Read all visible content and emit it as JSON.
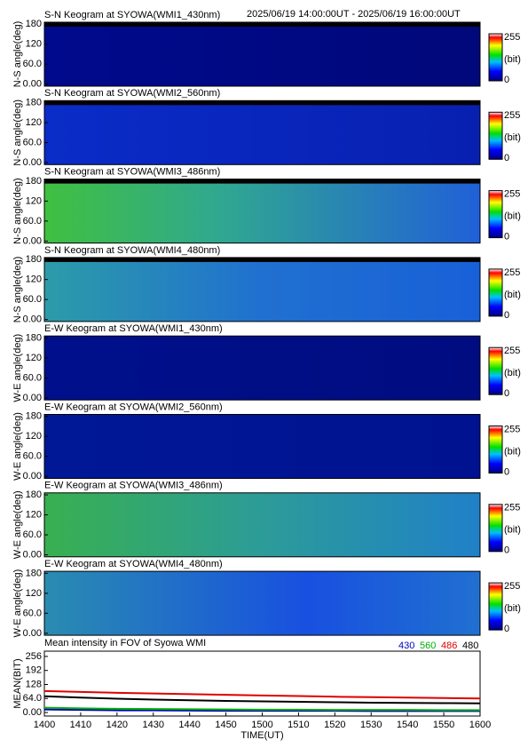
{
  "header": {
    "time_range": "2025/06/19 14:00:00UT - 2025/06/19 16:00:00UT"
  },
  "panels": [
    {
      "title": "S-N Keogram at SYOWA(WMI1_430nm)",
      "ylabel": "N-S angle(deg)",
      "ylim": [
        -6,
        186
      ],
      "yticks": [
        {
          "value": 0,
          "label": "0.00"
        },
        {
          "value": 60,
          "label": "60.0"
        },
        120,
        180
      ],
      "colorbar": {
        "max": 255,
        "unit": "(bit)",
        "min": 0
      }
    },
    {
      "title": "S-N Keogram at SYOWA(WMI2_560nm)",
      "ylabel": "N-S angle(deg)",
      "ylim": [
        -6,
        186
      ],
      "yticks": [
        {
          "value": 0,
          "label": "0.00"
        },
        {
          "value": 60,
          "label": "60.0"
        },
        120,
        180
      ],
      "colorbar": {
        "max": 255,
        "unit": "(bit)",
        "min": 0
      }
    },
    {
      "title": "S-N Keogram at SYOWA(WMI3_486nm)",
      "ylabel": "N-S angle(deg)",
      "ylim": [
        -6,
        186
      ],
      "yticks": [
        {
          "value": 0,
          "label": "0.00"
        },
        {
          "value": 60,
          "label": "60.0"
        },
        120,
        180
      ],
      "colorbar": {
        "max": 255,
        "unit": "(bit)",
        "min": 0
      }
    },
    {
      "title": "S-N Keogram at SYOWA(WMI4_480nm)",
      "ylabel": "N-S angle(deg)",
      "ylim": [
        -6,
        186
      ],
      "yticks": [
        {
          "value": 0,
          "label": "0.00"
        },
        {
          "value": 60,
          "label": "60.0"
        },
        120,
        180
      ],
      "colorbar": {
        "max": 255,
        "unit": "(bit)",
        "min": 0
      }
    },
    {
      "title": "E-W Keogram at SYOWA(WMI1_430nm)",
      "ylabel": "W-E angle(deg)",
      "ylim": [
        -6,
        186
      ],
      "yticks": [
        {
          "value": 0,
          "label": "0.00"
        },
        {
          "value": 60,
          "label": "60.0"
        },
        120,
        180
      ],
      "colorbar": {
        "max": 255,
        "unit": "(bit)",
        "min": 0
      }
    },
    {
      "title": "E-W Keogram at SYOWA(WMI2_560nm)",
      "ylabel": "W-E angle(deg)",
      "ylim": [
        -6,
        186
      ],
      "yticks": [
        {
          "value": 0,
          "label": "0.00"
        },
        {
          "value": 60,
          "label": "60.0"
        },
        120,
        180
      ],
      "colorbar": {
        "max": 255,
        "unit": "(bit)",
        "min": 0
      }
    },
    {
      "title": "E-W Keogram at SYOWA(WMI3_486nm)",
      "ylabel": "W-E angle(deg)",
      "ylim": [
        -6,
        186
      ],
      "yticks": [
        {
          "value": 0,
          "label": "0.00"
        },
        {
          "value": 60,
          "label": "60.0"
        },
        120,
        180
      ],
      "colorbar": {
        "max": 255,
        "unit": "(bit)",
        "min": 0
      }
    },
    {
      "title": "E-W Keogram at SYOWA(WMI4_480nm)",
      "ylabel": "W-E angle(deg)",
      "ylim": [
        -6,
        186
      ],
      "yticks": [
        {
          "value": 0,
          "label": "0.00"
        },
        {
          "value": 60,
          "label": "60.0"
        },
        120,
        180
      ],
      "colorbar": {
        "max": 255,
        "unit": "(bit)",
        "min": 0
      }
    }
  ],
  "chart_data": {
    "type": "line",
    "title": "Mean intensity in FOV of Syowa WMI",
    "xlabel": "TIME(UT)",
    "ylabel": "MEAN(BIT)",
    "categories": [
      "1400",
      "1410",
      "1420",
      "1430",
      "1440",
      "1450",
      "1500",
      "1510",
      "1520",
      "1530",
      "1540",
      "1550",
      "1600"
    ],
    "series": [
      {
        "name": "430",
        "color": "#0000c0",
        "values": [
          14,
          12,
          10,
          10,
          9,
          8,
          8,
          8,
          8,
          7,
          7,
          7,
          7
        ]
      },
      {
        "name": "560",
        "color": "#00b000",
        "values": [
          22,
          19,
          17,
          16,
          15,
          14,
          13,
          13,
          12,
          12,
          12,
          11,
          11
        ]
      },
      {
        "name": "486",
        "color": "#e00000",
        "values": [
          98,
          94,
          90,
          87,
          84,
          81,
          78,
          75,
          72,
          70,
          68,
          66,
          64
        ]
      },
      {
        "name": "480",
        "color": "#000000",
        "values": [
          74,
          68,
          63,
          59,
          56,
          53,
          51,
          49,
          47,
          45,
          44,
          43,
          42
        ]
      }
    ],
    "ylim": [
      -16,
      280
    ],
    "yticks": [
      {
        "value": 0,
        "label": "0.00"
      },
      {
        "value": 64,
        "label": "64.0"
      },
      128,
      192,
      256
    ]
  }
}
